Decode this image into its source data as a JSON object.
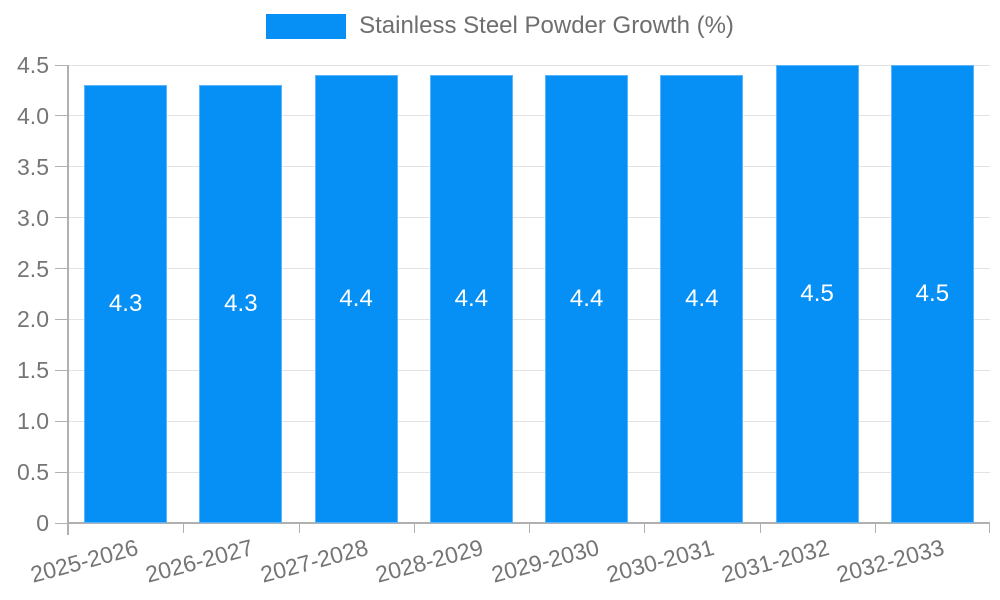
{
  "chart_data": {
    "type": "bar",
    "title": "",
    "legend": "Stainless Steel Powder Growth (%)",
    "legend_position": "top-center",
    "categories": [
      "2025-2026",
      "2026-2027",
      "2027-2028",
      "2028-2029",
      "2029-2030",
      "2030-2031",
      "2031-2032",
      "2032-2033"
    ],
    "values": [
      4.3,
      4.3,
      4.4,
      4.4,
      4.4,
      4.4,
      4.5,
      4.5
    ],
    "bar_labels": [
      "4.3",
      "4.3",
      "4.4",
      "4.4",
      "4.4",
      "4.4",
      "4.5",
      "4.5"
    ],
    "xlabel": "",
    "ylabel": "",
    "ylim": [
      0,
      4.5
    ],
    "ytick_interval": 0.5,
    "ytick_labels": [
      "0",
      "0.5",
      "1.0",
      "1.5",
      "2.0",
      "2.5",
      "3.0",
      "3.5",
      "4.0",
      "4.5"
    ],
    "grid": true,
    "x_label_rotation_deg": -15,
    "colors": {
      "bar": "#0690f5",
      "bar_label_text": "#ffffff",
      "axis_text": "#757575",
      "legend_text": "#6e6e6e",
      "gridline": "#e3e3e3",
      "axis_line": "#b0b0b0",
      "background": "#ffffff"
    }
  }
}
